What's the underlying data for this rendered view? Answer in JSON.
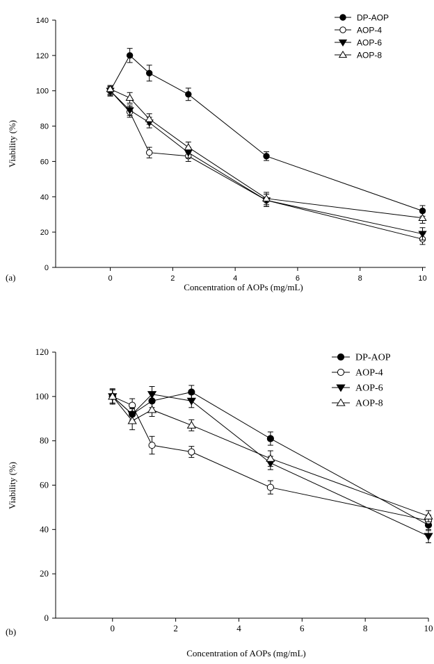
{
  "chart_data": [
    {
      "panel_label": "(a)",
      "type": "line",
      "xlabel": "Concentration of  AOPs (mg/mL)",
      "ylabel": "Viability (%)",
      "xlim": [
        -1.75,
        10.1
      ],
      "ylim": [
        0,
        140
      ],
      "xticks": [
        0,
        2,
        4,
        6,
        8,
        10
      ],
      "yticks": [
        0,
        20,
        40,
        60,
        80,
        100,
        120,
        140
      ],
      "legend_position": "top-right",
      "grid": false,
      "series": [
        {
          "name": "DP-AOP",
          "marker": "filled-circle",
          "x": [
            0,
            0.625,
            1.25,
            2.5,
            5,
            10
          ],
          "y": [
            100,
            120,
            110,
            98,
            63,
            32
          ],
          "err": [
            3,
            4,
            4.5,
            3.5,
            2.5,
            3
          ]
        },
        {
          "name": "AOP-4",
          "marker": "open-circle",
          "x": [
            0,
            0.625,
            1.25,
            2.5,
            5,
            10
          ],
          "y": [
            100,
            88,
            65,
            63,
            38,
            16
          ],
          "err": [
            2.5,
            3,
            3,
            3,
            3.5,
            3
          ]
        },
        {
          "name": "AOP-6",
          "marker": "filled-triangle-down",
          "x": [
            0,
            0.625,
            1.25,
            2.5,
            5,
            10
          ],
          "y": [
            100,
            89,
            82,
            65,
            38,
            19
          ],
          "err": [
            2,
            3,
            3,
            3,
            3.5,
            3.5
          ]
        },
        {
          "name": "AOP-8",
          "marker": "open-triangle-up",
          "x": [
            0,
            0.625,
            1.25,
            2.5,
            5,
            10
          ],
          "y": [
            101,
            96,
            84,
            68,
            39,
            28
          ],
          "err": [
            2,
            3,
            3,
            3,
            3.5,
            3
          ]
        }
      ]
    },
    {
      "panel_label": "(b)",
      "type": "line",
      "xlabel": "Concentration of  AOPs (mg/mL)",
      "ylabel": "Viability (%)",
      "xlim": [
        -1.8,
        10
      ],
      "ylim": [
        0,
        120
      ],
      "xticks": [
        0,
        2,
        4,
        6,
        8,
        10
      ],
      "yticks": [
        0,
        20,
        40,
        60,
        80,
        100,
        120
      ],
      "legend_position": "top-right",
      "grid": false,
      "series": [
        {
          "name": "DP-AOP",
          "marker": "filled-circle",
          "x": [
            0,
            0.625,
            1.25,
            2.5,
            5,
            10
          ],
          "y": [
            100,
            92,
            98,
            102,
            81,
            42
          ],
          "err": [
            3,
            2.5,
            3,
            3,
            3,
            2.5
          ]
        },
        {
          "name": "AOP-4",
          "marker": "open-circle",
          "x": [
            0,
            0.625,
            1.25,
            2.5,
            5,
            10
          ],
          "y": [
            100,
            96,
            78,
            75,
            59,
            44
          ],
          "err": [
            3,
            3,
            4,
            2.5,
            3,
            2.5
          ]
        },
        {
          "name": "AOP-6",
          "marker": "filled-triangle-down",
          "x": [
            0,
            0.625,
            1.25,
            2.5,
            5,
            10
          ],
          "y": [
            100,
            92,
            101,
            98,
            70,
            37
          ],
          "err": [
            3.5,
            3,
            3.5,
            3,
            3,
            3
          ]
        },
        {
          "name": "AOP-8",
          "marker": "open-triangle-up",
          "x": [
            0,
            0.625,
            1.25,
            2.5,
            5,
            10
          ],
          "y": [
            100,
            89,
            94,
            87,
            72,
            46
          ],
          "err": [
            3,
            4,
            3,
            2.5,
            3.5,
            2.5
          ]
        }
      ]
    }
  ]
}
